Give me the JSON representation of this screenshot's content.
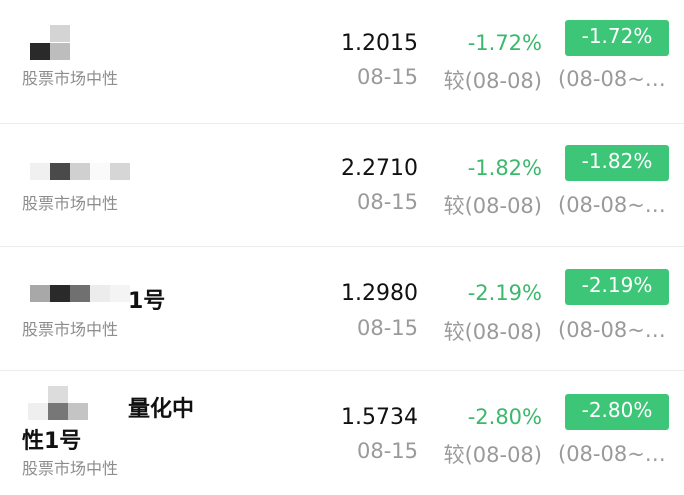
{
  "colors": {
    "badge_bg": "#3ec678",
    "negative": "#3bb86c"
  },
  "funds": [
    {
      "name": "",
      "category": "股票市场中性",
      "value": "1.2015",
      "date": "08-15",
      "change": "-1.72%",
      "compare": "较(08-08)",
      "badge": "-1.72%",
      "range": "(08-08~…"
    },
    {
      "name": "",
      "category": "股票市场中性",
      "value": "2.2710",
      "date": "08-15",
      "change": "-1.82%",
      "compare": "较(08-08)",
      "badge": "-1.82%",
      "range": "(08-08~…"
    },
    {
      "name": "1号",
      "category": "股票市场中性",
      "value": "1.2980",
      "date": "08-15",
      "change": "-2.19%",
      "compare": "较(08-08)",
      "badge": "-2.19%",
      "range": "(08-08~…"
    },
    {
      "name": "量化中",
      "name_line2": "性1号",
      "category": "股票市场中性",
      "value": "1.5734",
      "date": "08-15",
      "change": "-2.80%",
      "compare": "较(08-08)",
      "badge": "-2.80%",
      "range": "(08-08~…"
    }
  ]
}
